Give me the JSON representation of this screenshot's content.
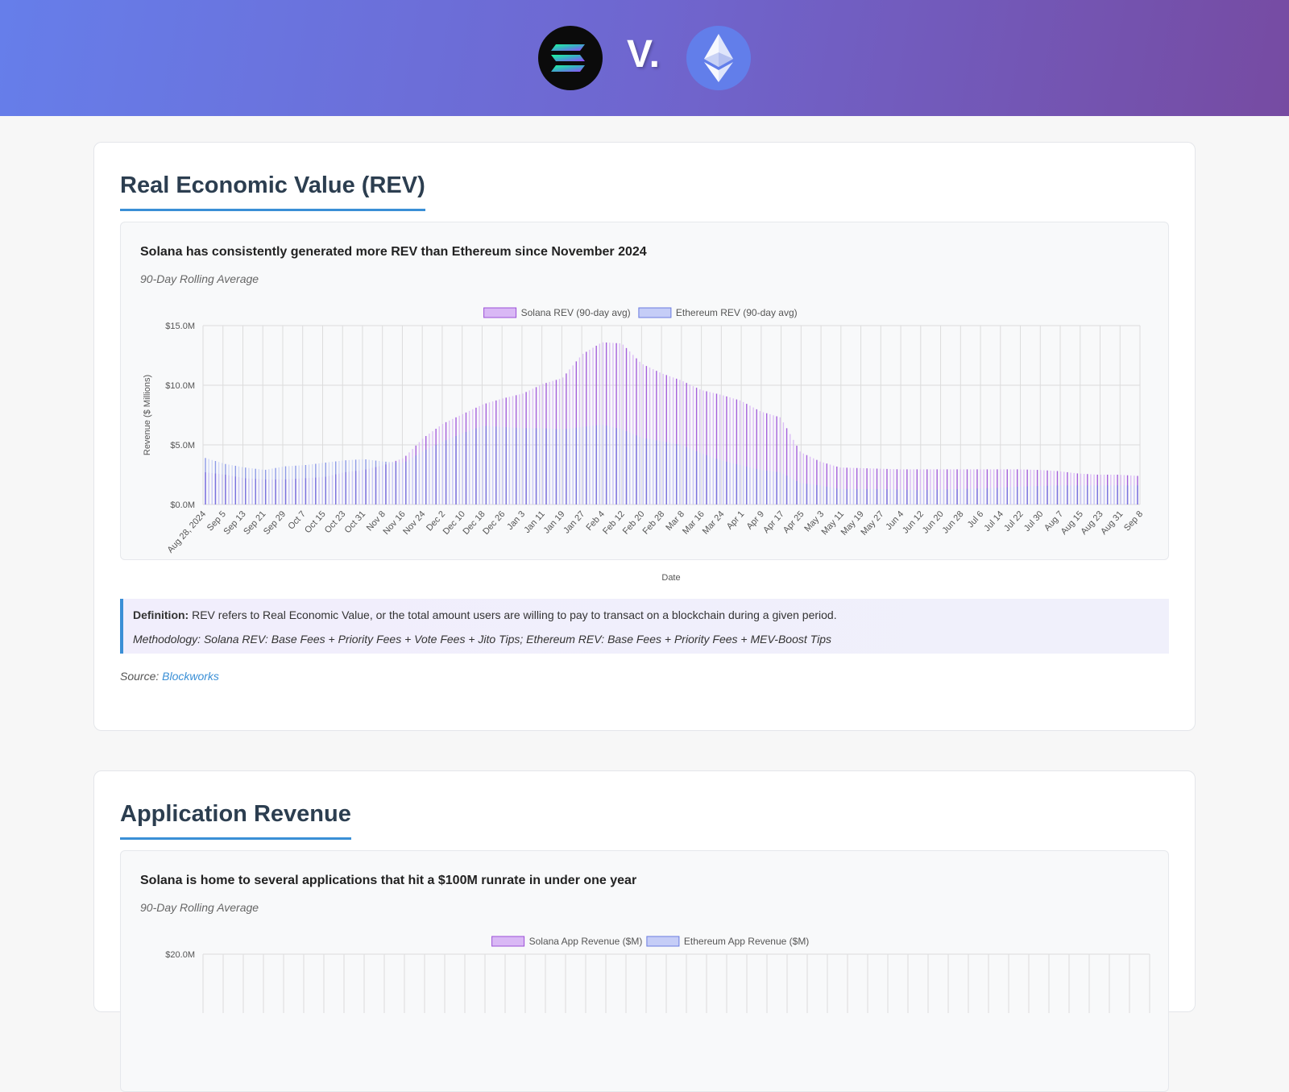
{
  "header": {
    "vs_text": "V.",
    "solana_logo_icon": "solana-logo-icon",
    "ethereum_logo_icon": "ethereum-logo-icon"
  },
  "sections": [
    {
      "title": "Real Economic Value (REV)",
      "chart_heading": "Solana has consistently generated more REV than Ethereum since November 2024",
      "chart_subheading": "90-Day Rolling Average",
      "definition_label": "Definition:",
      "definition_text": "REV refers to Real Economic Value, or the total amount users are willing to pay to transact on a blockchain during a given period.",
      "methodology": "Methodology: Solana REV: Base Fees + Priority Fees + Vote Fees + Jito Tips; Ethereum REV: Base Fees + Priority Fees + MEV-Boost Tips",
      "source_label": "Source:",
      "source_link": "Blockworks"
    },
    {
      "title": "Application Revenue",
      "chart_heading": "Solana is home to several applications that hit a $100M runrate in under one year",
      "chart_subheading": "90-Day Rolling Average"
    }
  ],
  "chart_data": [
    {
      "type": "area",
      "title": "",
      "xlabel": "Date",
      "ylabel": "Revenue ($ Millions)",
      "ylim": [
        0,
        15
      ],
      "yticks": [
        "$0.0M",
        "$5.0M",
        "$10.0M",
        "$15.0M"
      ],
      "legend_position": "top-center",
      "grid": true,
      "categories": [
        "Aug 28, 2024",
        "Sep 5",
        "Sep 13",
        "Sep 21",
        "Sep 29",
        "Oct 7",
        "Oct 15",
        "Oct 23",
        "Oct 31",
        "Nov 8",
        "Nov 16",
        "Nov 24",
        "Dec 2",
        "Dec 10",
        "Dec 18",
        "Dec 26",
        "Jan 3",
        "Jan 11",
        "Jan 19",
        "Jan 27",
        "Feb 4",
        "Feb 12",
        "Feb 20",
        "Feb 28",
        "Mar 8",
        "Mar 16",
        "Mar 24",
        "Apr 1",
        "Apr 9",
        "Apr 17",
        "Apr 25",
        "May 3",
        "May 11",
        "May 19",
        "May 27",
        "Jun 4",
        "Jun 12",
        "Jun 20",
        "Jun 28",
        "Jul 6",
        "Jul 14",
        "Jul 22",
        "Jul 30",
        "Aug 7",
        "Aug 15",
        "Aug 23",
        "Aug 31",
        "Sep 8"
      ],
      "series": [
        {
          "name": "Solana REV (90-day avg)",
          "color": "#9b4fd8",
          "fill": "#d9b8f5",
          "values": [
            2.7,
            2.5,
            2.2,
            2.1,
            2.1,
            2.2,
            2.3,
            2.7,
            2.9,
            3.3,
            3.9,
            5.6,
            6.8,
            7.6,
            8.4,
            8.9,
            9.3,
            10.1,
            10.6,
            12.6,
            13.6,
            13.5,
            11.8,
            11.0,
            10.4,
            9.6,
            9.2,
            8.7,
            7.8,
            7.3,
            4.4,
            3.6,
            3.1,
            3.05,
            3.0,
            2.95,
            2.95,
            2.95,
            2.95,
            2.95,
            2.95,
            2.95,
            2.9,
            2.8,
            2.6,
            2.5,
            2.5,
            2.4
          ]
        },
        {
          "name": "Ethereum REV (90-day avg)",
          "color": "#6a7be0",
          "fill": "#c5cdf7",
          "values": [
            3.9,
            3.4,
            3.1,
            2.9,
            3.2,
            3.3,
            3.5,
            3.7,
            3.8,
            3.6,
            3.5,
            4.5,
            5.3,
            6.0,
            6.6,
            6.5,
            6.4,
            6.4,
            6.3,
            6.5,
            6.7,
            6.3,
            5.6,
            5.3,
            5.0,
            4.3,
            3.7,
            3.3,
            2.9,
            2.7,
            1.8,
            1.6,
            1.3,
            1.3,
            1.3,
            1.25,
            1.2,
            1.25,
            1.3,
            1.35,
            1.4,
            1.5,
            1.55,
            1.6,
            1.6,
            1.6,
            1.6,
            1.6
          ]
        }
      ]
    },
    {
      "type": "area",
      "title": "",
      "legend_position": "top-center",
      "ylim": [
        0,
        20
      ],
      "yticks": [
        "$20.0M"
      ],
      "series": [
        {
          "name": "Solana App Revenue ($M)",
          "color": "#9b4fd8",
          "fill": "#d9b8f5"
        },
        {
          "name": "Ethereum App Revenue ($M)",
          "color": "#6a7be0",
          "fill": "#c5cdf7"
        }
      ]
    }
  ]
}
